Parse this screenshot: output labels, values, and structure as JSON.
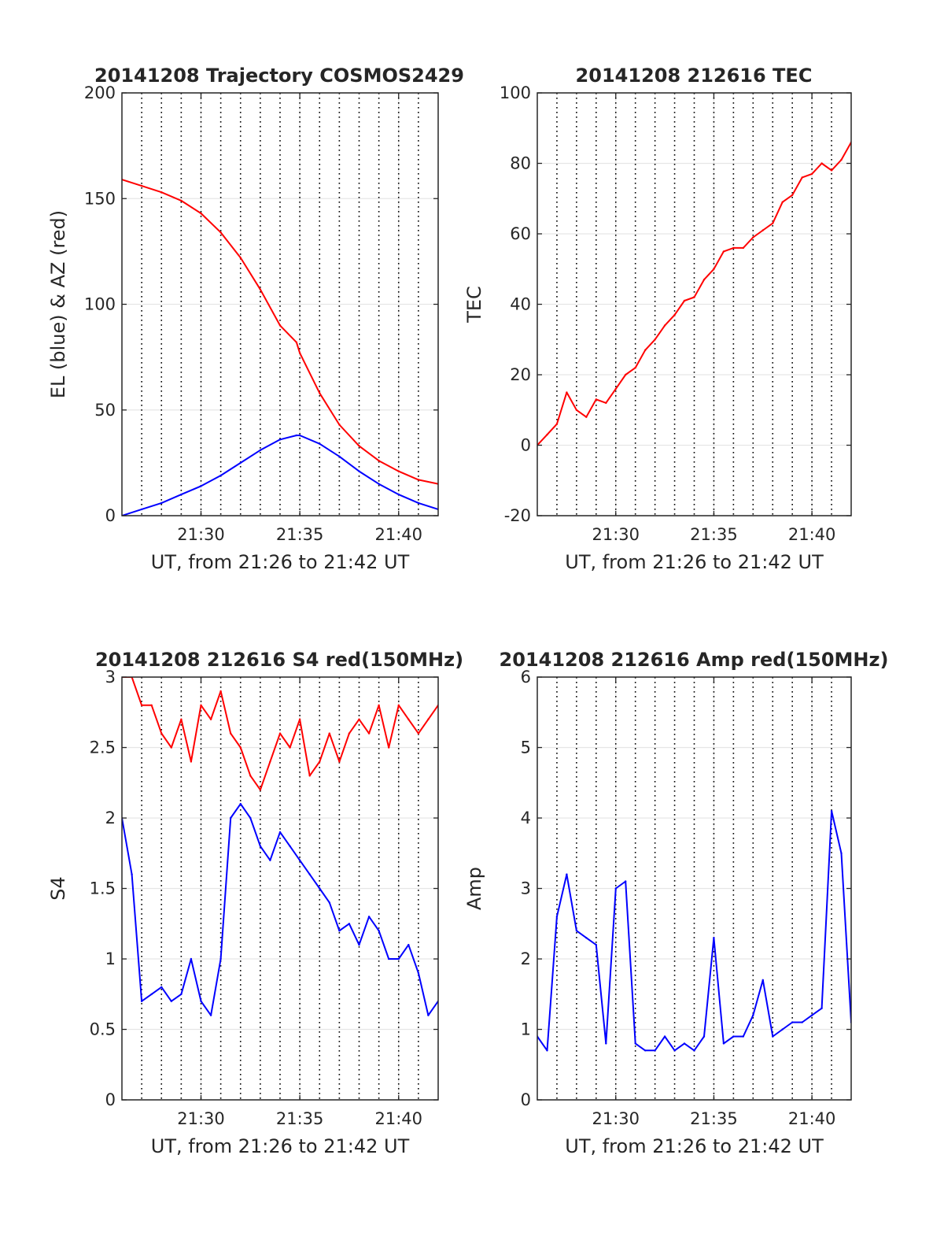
{
  "colors": {
    "red": "#ff0000",
    "blue": "#0000ff",
    "grid": "#e6e6e6",
    "axis": "#262626",
    "dotted": "#000000"
  },
  "chart_data": [
    {
      "type": "line",
      "title": "20141208 Trajectory COSMOS2429",
      "xlabel": "UT, from 21:26 to 21:42 UT",
      "ylabel": "EL (blue) & AZ (red)",
      "xlim": [
        "21:26",
        "21:42"
      ],
      "ylim": [
        0,
        200
      ],
      "xticks": [
        "21:30",
        "21:35",
        "21:40"
      ],
      "yticks": [
        "0",
        "50",
        "100",
        "150",
        "200"
      ],
      "grid": true,
      "dotted_verticals": [
        "21:27",
        "21:28",
        "21:29",
        "21:30",
        "21:31",
        "21:32",
        "21:33",
        "21:34",
        "21:35",
        "21:36",
        "21:37",
        "21:38",
        "21:39",
        "21:40",
        "21:41"
      ],
      "x": [
        "21:26",
        "21:27",
        "21:28",
        "21:29",
        "21:30",
        "21:31",
        "21:32",
        "21:33",
        "21:34",
        "21:34:50",
        "21:35",
        "21:36",
        "21:37",
        "21:38",
        "21:39",
        "21:40",
        "21:41",
        "21:42"
      ],
      "series": [
        {
          "color": "#0000ff",
          "values": [
            0,
            3,
            6,
            10,
            14,
            19,
            25,
            31,
            36,
            38,
            38,
            34,
            28,
            21,
            15,
            10,
            6,
            3
          ]
        },
        {
          "color": "#ff0000",
          "values": [
            159,
            156,
            153,
            149,
            143,
            134,
            122,
            107,
            90,
            82,
            77,
            58,
            43,
            33,
            26,
            21,
            17,
            15
          ]
        }
      ]
    },
    {
      "type": "line",
      "title": "20141208 212616 TEC",
      "xlabel": "UT, from 21:26 to 21:42 UT",
      "ylabel": "TEC",
      "xlim": [
        "21:26",
        "21:42"
      ],
      "ylim": [
        -20,
        100
      ],
      "xticks": [
        "21:30",
        "21:35",
        "21:40"
      ],
      "yticks": [
        "-20",
        "0",
        "20",
        "40",
        "60",
        "80",
        "100"
      ],
      "grid": true,
      "dotted_verticals": [
        "21:27",
        "21:28",
        "21:29",
        "21:30",
        "21:31",
        "21:32",
        "21:33",
        "21:34",
        "21:35",
        "21:36",
        "21:37",
        "21:38",
        "21:39",
        "21:40",
        "21:41"
      ],
      "x": [
        "21:26",
        "21:26:30",
        "21:27",
        "21:27:30",
        "21:28",
        "21:28:30",
        "21:29",
        "21:29:30",
        "21:30",
        "21:30:30",
        "21:31",
        "21:31:30",
        "21:32",
        "21:32:30",
        "21:33",
        "21:33:30",
        "21:34",
        "21:34:30",
        "21:35",
        "21:35:30",
        "21:36",
        "21:36:30",
        "21:37",
        "21:37:30",
        "21:38",
        "21:38:30",
        "21:39",
        "21:39:30",
        "21:40",
        "21:40:30",
        "21:41",
        "21:41:30",
        "21:42"
      ],
      "series": [
        {
          "color": "#ff0000",
          "values": [
            0,
            3,
            6,
            15,
            10,
            8,
            13,
            12,
            16,
            20,
            22,
            27,
            30,
            34,
            37,
            41,
            42,
            47,
            50,
            55,
            56,
            56,
            59,
            61,
            63,
            69,
            71,
            76,
            77,
            80,
            78,
            81,
            86
          ]
        }
      ]
    },
    {
      "type": "line",
      "title": "20141208 212616 S4 red(150MHz)",
      "xlabel": "UT, from 21:26 to 21:42 UT",
      "ylabel": "S4",
      "xlim": [
        "21:26",
        "21:42"
      ],
      "ylim": [
        0,
        3
      ],
      "xticks": [
        "21:30",
        "21:35",
        "21:40"
      ],
      "yticks": [
        "0",
        "0.5",
        "1",
        "1.5",
        "2",
        "2.5",
        "3"
      ],
      "grid": true,
      "dotted_verticals": [
        "21:27",
        "21:28",
        "21:29",
        "21:30",
        "21:31",
        "21:32",
        "21:33",
        "21:34",
        "21:35",
        "21:36",
        "21:37",
        "21:38",
        "21:39",
        "21:40",
        "21:41"
      ],
      "x": [
        "21:26",
        "21:26:30",
        "21:27",
        "21:27:30",
        "21:28",
        "21:28:30",
        "21:29",
        "21:29:30",
        "21:30",
        "21:30:30",
        "21:31",
        "21:31:30",
        "21:32",
        "21:32:30",
        "21:33",
        "21:33:30",
        "21:34",
        "21:34:30",
        "21:35",
        "21:35:30",
        "21:36",
        "21:36:30",
        "21:37",
        "21:37:30",
        "21:38",
        "21:38:30",
        "21:39",
        "21:39:30",
        "21:40",
        "21:40:30",
        "21:41",
        "21:41:30",
        "21:42"
      ],
      "series": [
        {
          "color": "#ff0000",
          "values": [
            3,
            3,
            2.8,
            2.8,
            2.6,
            2.5,
            2.7,
            2.4,
            2.8,
            2.7,
            2.9,
            2.6,
            2.5,
            2.3,
            2.2,
            2.4,
            2.6,
            2.5,
            2.7,
            2.3,
            2.4,
            2.6,
            2.4,
            2.6,
            2.7,
            2.6,
            2.8,
            2.5,
            2.8,
            2.7,
            2.6,
            2.7,
            2.8
          ]
        },
        {
          "color": "#0000ff",
          "values": [
            2.0,
            1.6,
            0.7,
            0.75,
            0.8,
            0.7,
            0.75,
            1.0,
            0.7,
            0.6,
            1.0,
            2.0,
            2.1,
            2.0,
            1.8,
            1.7,
            1.9,
            1.8,
            1.7,
            1.6,
            1.5,
            1.4,
            1.2,
            1.25,
            1.1,
            1.3,
            1.2,
            1.0,
            1.0,
            1.1,
            0.9,
            0.6,
            0.7
          ]
        }
      ]
    },
    {
      "type": "line",
      "title": "20141208 212616 Amp red(150MHz)",
      "xlabel": "UT, from 21:26 to 21:42 UT",
      "ylabel": "Amp",
      "xlim": [
        "21:26",
        "21:42"
      ],
      "ylim": [
        0,
        6
      ],
      "xticks": [
        "21:30",
        "21:35",
        "21:40"
      ],
      "yticks": [
        "0",
        "1",
        "2",
        "3",
        "4",
        "5",
        "6"
      ],
      "grid": true,
      "dotted_verticals": [
        "21:27",
        "21:28",
        "21:29",
        "21:30",
        "21:31",
        "21:32",
        "21:33",
        "21:34",
        "21:35",
        "21:36",
        "21:37",
        "21:38",
        "21:39",
        "21:40",
        "21:41"
      ],
      "x": [
        "21:26",
        "21:26:30",
        "21:27",
        "21:27:30",
        "21:28",
        "21:28:30",
        "21:29",
        "21:29:30",
        "21:30",
        "21:30:30",
        "21:31",
        "21:31:30",
        "21:32",
        "21:32:30",
        "21:33",
        "21:33:30",
        "21:34",
        "21:34:30",
        "21:35",
        "21:35:30",
        "21:36",
        "21:36:30",
        "21:37",
        "21:37:30",
        "21:38",
        "21:38:30",
        "21:39",
        "21:39:30",
        "21:40",
        "21:40:30",
        "21:41",
        "21:41:30",
        "21:42"
      ],
      "series": [
        {
          "color": "#0000ff",
          "values": [
            0.9,
            0.7,
            2.6,
            3.2,
            2.4,
            2.3,
            2.2,
            0.8,
            3.0,
            3.1,
            0.8,
            0.7,
            0.7,
            0.9,
            0.7,
            0.8,
            0.7,
            0.9,
            2.3,
            0.8,
            0.9,
            0.9,
            1.2,
            1.7,
            0.9,
            1.0,
            1.1,
            1.1,
            1.2,
            1.3,
            4.1,
            3.5,
            1.1
          ]
        }
      ]
    }
  ]
}
